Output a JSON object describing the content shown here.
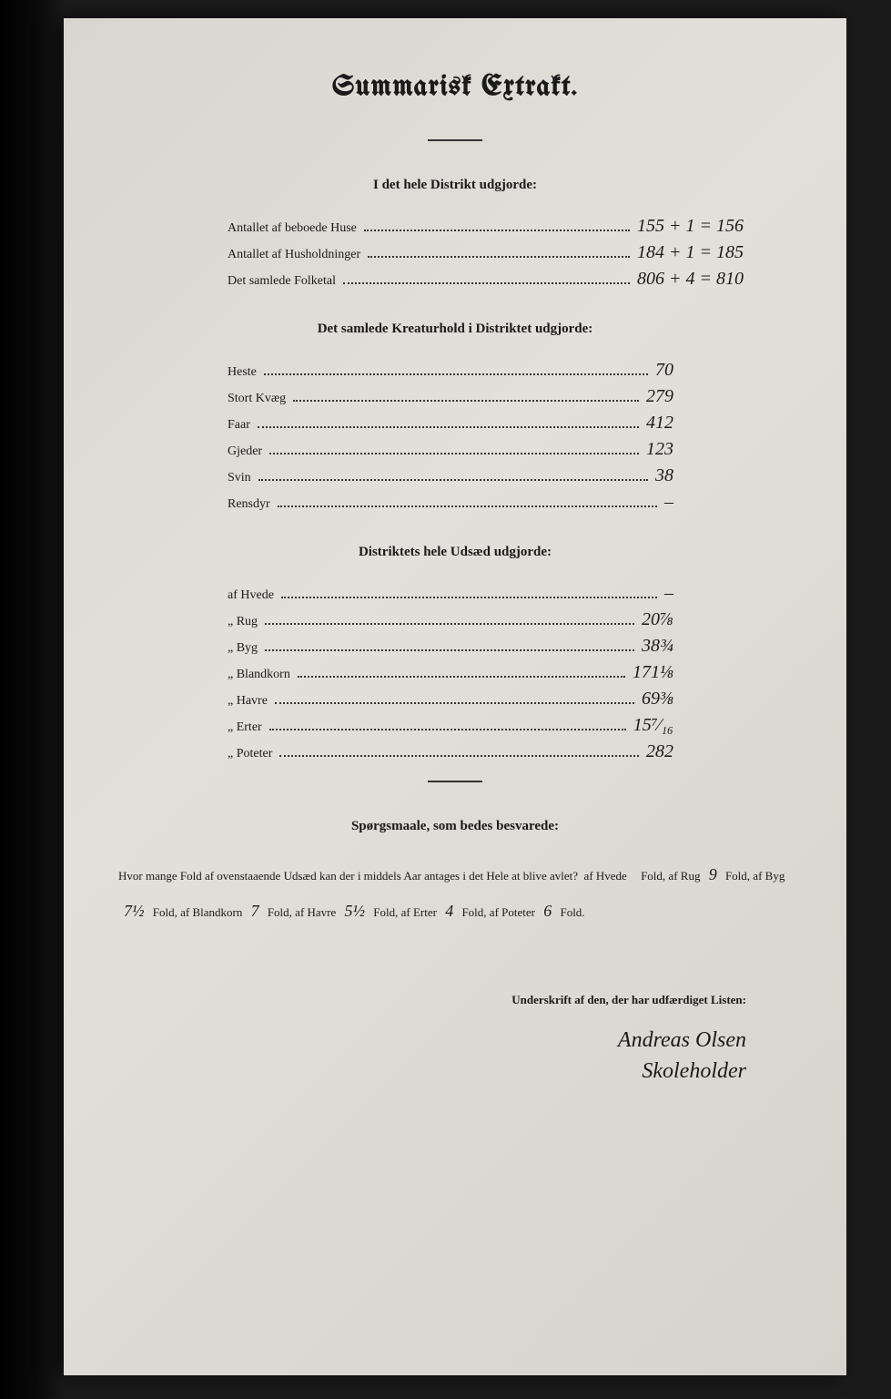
{
  "title": "Summarisk Extrakt.",
  "section1": {
    "heading": "I det hele Distrikt udgjorde:",
    "rows": [
      {
        "label": "Antallet af beboede Huse",
        "value": "155 + 1 = 156"
      },
      {
        "label": "Antallet af Husholdninger",
        "value": "184 + 1 = 185"
      },
      {
        "label": "Det samlede Folketal",
        "value": "806 + 4 = 810"
      }
    ]
  },
  "section2": {
    "heading": "Det samlede Kreaturhold i Distriktet udgjorde:",
    "rows": [
      {
        "label": "Heste",
        "value": "70"
      },
      {
        "label": "Stort Kvæg",
        "value": "279"
      },
      {
        "label": "Faar",
        "value": "412"
      },
      {
        "label": "Gjeder",
        "value": "123"
      },
      {
        "label": "Svin",
        "value": "38"
      },
      {
        "label": "Rensdyr",
        "value": "–"
      }
    ]
  },
  "section3": {
    "heading": "Distriktets hele Udsæd udgjorde:",
    "rows": [
      {
        "label": "af Hvede",
        "value": "–"
      },
      {
        "label": "„ Rug",
        "value": "20⅞"
      },
      {
        "label": "„ Byg",
        "value": "38¾"
      },
      {
        "label": "„ Blandkorn",
        "value": "171⅛"
      },
      {
        "label": "„ Havre",
        "value": "69⅜"
      },
      {
        "label": "„ Erter",
        "value": "15⁷⁄₁₆"
      },
      {
        "label": "„ Poteter",
        "value": "282"
      }
    ]
  },
  "section4": {
    "heading": "Spørgsmaale, som bedes besvarede:",
    "intro": "Hvor mange Fold af ovenstaaende Udsæd kan der i middels Aar antages i det Hele at blive avlet?",
    "items": {
      "hvede": "",
      "rug": "9",
      "byg": "7½",
      "blandkorn": "7",
      "havre": "5½",
      "erter": "4",
      "poteter": "6"
    }
  },
  "signature": {
    "label": "Underskrift af den, der har udfærdiget Listen:",
    "name": "Andreas Olsen",
    "role": "Skoleholder"
  },
  "colors": {
    "paper": "#dedcD5",
    "ink": "#1a1a1a",
    "background": "#1a1a1a"
  },
  "typography": {
    "title_fontsize": 32,
    "heading_fontsize": 15,
    "body_fontsize": 14,
    "handwriting_fontsize": 20
  }
}
